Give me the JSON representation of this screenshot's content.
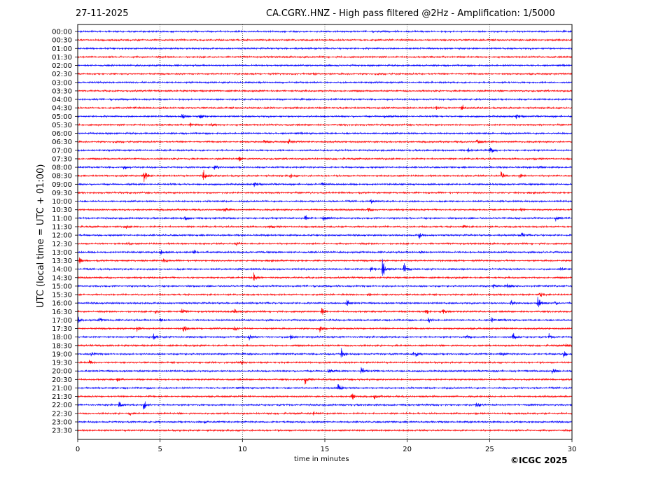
{
  "header": {
    "date": "27-11-2025",
    "title": "CA.CGRY..HNZ - High pass filtered @2Hz - Amplification: 1/5000"
  },
  "footer": {
    "copyright": "©ICGC 2025"
  },
  "chart_data": {
    "type": "line",
    "title": "CA.CGRY..HNZ - High pass filtered @2Hz - Amplification: 1/5000",
    "xlabel": "time in minutes",
    "ylabel": "UTC (local time = UTC + 01:00)",
    "xlim": [
      0,
      30
    ],
    "x_ticks": [
      0,
      5,
      10,
      15,
      20,
      25,
      30
    ],
    "vertical_gridlines": [
      5,
      10,
      15,
      20,
      25
    ],
    "grid": "dotted vertical lines at 5-minute intervals",
    "trace_colors": [
      "#0000ff",
      "#ff0000"
    ],
    "traces": [
      "00:00",
      "00:30",
      "01:00",
      "01:30",
      "02:00",
      "02:30",
      "03:00",
      "03:30",
      "04:00",
      "04:30",
      "05:00",
      "05:30",
      "06:00",
      "06:30",
      "07:00",
      "07:30",
      "08:00",
      "08:30",
      "09:00",
      "09:30",
      "10:00",
      "10:30",
      "11:00",
      "11:30",
      "12:00",
      "12:30",
      "13:00",
      "13:30",
      "14:00",
      "14:30",
      "15:00",
      "15:30",
      "16:00",
      "16:30",
      "17:00",
      "17:30",
      "18:00",
      "18:30",
      "19:00",
      "19:30",
      "20:00",
      "20:30",
      "21:00",
      "21:30",
      "22:00",
      "22:30",
      "23:00",
      "23:30"
    ],
    "events": [
      {
        "trace": "02:30",
        "minute": 14.3,
        "amplitude": 0.5
      },
      {
        "trace": "04:30",
        "minute": 3.3,
        "amplitude": 0.3
      },
      {
        "trace": "04:30",
        "minute": 5.0,
        "amplitude": 0.25
      },
      {
        "trace": "04:30",
        "minute": 21.7,
        "amplitude": 0.2
      },
      {
        "trace": "04:30",
        "minute": 23.3,
        "amplitude": 0.5
      },
      {
        "trace": "05:00",
        "minute": 6.3,
        "amplitude": 0.5
      },
      {
        "trace": "05:00",
        "minute": 7.4,
        "amplitude": 0.5
      },
      {
        "trace": "05:00",
        "minute": 18.6,
        "amplitude": 0.3
      },
      {
        "trace": "05:00",
        "minute": 26.6,
        "amplitude": 0.4
      },
      {
        "trace": "05:30",
        "minute": 6.8,
        "amplitude": 0.4
      },
      {
        "trace": "05:30",
        "minute": 8.1,
        "amplitude": 0.35
      },
      {
        "trace": "06:30",
        "minute": 11.3,
        "amplitude": 0.3
      },
      {
        "trace": "06:30",
        "minute": 12.8,
        "amplitude": 0.4
      },
      {
        "trace": "06:30",
        "minute": 24.2,
        "amplitude": 0.4
      },
      {
        "trace": "07:00",
        "minute": 23.7,
        "amplitude": 0.3
      },
      {
        "trace": "07:00",
        "minute": 25.0,
        "amplitude": 0.7
      },
      {
        "trace": "07:30",
        "minute": 9.8,
        "amplitude": 0.35
      },
      {
        "trace": "08:00",
        "minute": 2.8,
        "amplitude": 0.3
      },
      {
        "trace": "08:00",
        "minute": 8.3,
        "amplitude": 0.4
      },
      {
        "trace": "08:00",
        "minute": 28.0,
        "amplitude": 0.3
      },
      {
        "trace": "08:30",
        "minute": 4.0,
        "amplitude": 1.2
      },
      {
        "trace": "08:30",
        "minute": 7.6,
        "amplitude": 1.2
      },
      {
        "trace": "08:30",
        "minute": 12.9,
        "amplitude": 0.3
      },
      {
        "trace": "08:30",
        "minute": 25.7,
        "amplitude": 0.7
      },
      {
        "trace": "08:30",
        "minute": 26.8,
        "amplitude": 0.4
      },
      {
        "trace": "09:00",
        "minute": 10.7,
        "amplitude": 0.4
      },
      {
        "trace": "09:00",
        "minute": 14.8,
        "amplitude": 0.2
      },
      {
        "trace": "10:00",
        "minute": 17.8,
        "amplitude": 0.35
      },
      {
        "trace": "10:30",
        "minute": 8.9,
        "amplitude": 0.5
      },
      {
        "trace": "10:30",
        "minute": 17.6,
        "amplitude": 0.35
      },
      {
        "trace": "10:30",
        "minute": 26.9,
        "amplitude": 0.3
      },
      {
        "trace": "11:00",
        "minute": 6.5,
        "amplitude": 0.4
      },
      {
        "trace": "11:00",
        "minute": 13.8,
        "amplitude": 0.6
      },
      {
        "trace": "11:00",
        "minute": 14.9,
        "amplitude": 0.4
      },
      {
        "trace": "11:00",
        "minute": 29.0,
        "amplitude": 0.5
      },
      {
        "trace": "11:30",
        "minute": 2.9,
        "amplitude": 0.3
      },
      {
        "trace": "11:30",
        "minute": 11.6,
        "amplitude": 0.3
      },
      {
        "trace": "11:30",
        "minute": 23.4,
        "amplitude": 0.3
      },
      {
        "trace": "12:00",
        "minute": 20.7,
        "amplitude": 0.55
      },
      {
        "trace": "12:00",
        "minute": 26.9,
        "amplitude": 0.55
      },
      {
        "trace": "12:30",
        "minute": 3.0,
        "amplitude": 0.3
      },
      {
        "trace": "12:30",
        "minute": 9.6,
        "amplitude": 0.35
      },
      {
        "trace": "13:00",
        "minute": 5.0,
        "amplitude": 0.5
      },
      {
        "trace": "13:00",
        "minute": 7.0,
        "amplitude": 0.5
      },
      {
        "trace": "13:00",
        "minute": 20.8,
        "amplitude": 0.3
      },
      {
        "trace": "13:30",
        "minute": 0.1,
        "amplitude": 0.5
      },
      {
        "trace": "13:30",
        "minute": 5.2,
        "amplitude": 0.35
      },
      {
        "trace": "14:00",
        "minute": 17.8,
        "amplitude": 0.4
      },
      {
        "trace": "14:00",
        "minute": 18.5,
        "amplitude": 1.5
      },
      {
        "trace": "14:00",
        "minute": 19.8,
        "amplitude": 0.9
      },
      {
        "trace": "14:00",
        "minute": 29.3,
        "amplitude": 0.35
      },
      {
        "trace": "14:30",
        "minute": 10.7,
        "amplitude": 0.8
      },
      {
        "trace": "15:00",
        "minute": 25.2,
        "amplitude": 0.5
      },
      {
        "trace": "15:00",
        "minute": 26.1,
        "amplitude": 0.4
      },
      {
        "trace": "15:30",
        "minute": 17.6,
        "amplitude": 0.35
      },
      {
        "trace": "15:30",
        "minute": 28.0,
        "amplitude": 0.5
      },
      {
        "trace": "16:00",
        "minute": 16.3,
        "amplitude": 0.6
      },
      {
        "trace": "16:00",
        "minute": 26.3,
        "amplitude": 0.5
      },
      {
        "trace": "16:00",
        "minute": 27.9,
        "amplitude": 1.2
      },
      {
        "trace": "16:00",
        "minute": 28.9,
        "amplitude": 0.4
      },
      {
        "trace": "16:30",
        "minute": 4.7,
        "amplitude": 0.3
      },
      {
        "trace": "16:30",
        "minute": 6.3,
        "amplitude": 0.4
      },
      {
        "trace": "16:30",
        "minute": 9.5,
        "amplitude": 0.35
      },
      {
        "trace": "16:30",
        "minute": 14.8,
        "amplitude": 0.5
      },
      {
        "trace": "16:30",
        "minute": 21.1,
        "amplitude": 0.6
      },
      {
        "trace": "16:30",
        "minute": 22.1,
        "amplitude": 0.6
      },
      {
        "trace": "17:00",
        "minute": 0.0,
        "amplitude": 0.5
      },
      {
        "trace": "17:00",
        "minute": 1.3,
        "amplitude": 0.4
      },
      {
        "trace": "17:00",
        "minute": 5.0,
        "amplitude": 0.4
      },
      {
        "trace": "17:00",
        "minute": 21.3,
        "amplitude": 0.4
      },
      {
        "trace": "17:00",
        "minute": 25.1,
        "amplitude": 0.4
      },
      {
        "trace": "17:30",
        "minute": 3.6,
        "amplitude": 0.5
      },
      {
        "trace": "17:30",
        "minute": 6.4,
        "amplitude": 0.8
      },
      {
        "trace": "17:30",
        "minute": 9.5,
        "amplitude": 0.4
      },
      {
        "trace": "17:30",
        "minute": 14.7,
        "amplitude": 0.4
      },
      {
        "trace": "18:00",
        "minute": 4.6,
        "amplitude": 0.5
      },
      {
        "trace": "18:00",
        "minute": 10.4,
        "amplitude": 0.4
      },
      {
        "trace": "18:00",
        "minute": 12.9,
        "amplitude": 0.4
      },
      {
        "trace": "18:00",
        "minute": 23.6,
        "amplitude": 0.5
      },
      {
        "trace": "18:00",
        "minute": 26.4,
        "amplitude": 0.7
      },
      {
        "trace": "18:00",
        "minute": 28.6,
        "amplitude": 0.4
      },
      {
        "trace": "18:30",
        "minute": 29.6,
        "amplitude": 0.3
      },
      {
        "trace": "19:00",
        "minute": 0.8,
        "amplitude": 0.4
      },
      {
        "trace": "19:00",
        "minute": 16.0,
        "amplitude": 0.9
      },
      {
        "trace": "19:00",
        "minute": 20.4,
        "amplitude": 0.9
      },
      {
        "trace": "19:00",
        "minute": 25.7,
        "amplitude": 0.5
      },
      {
        "trace": "19:00",
        "minute": 29.5,
        "amplitude": 0.5
      },
      {
        "trace": "19:30",
        "minute": 0.7,
        "amplitude": 0.35
      },
      {
        "trace": "19:30",
        "minute": 9.9,
        "amplitude": 0.4
      },
      {
        "trace": "20:00",
        "minute": 15.2,
        "amplitude": 0.5
      },
      {
        "trace": "20:00",
        "minute": 17.2,
        "amplitude": 0.8
      },
      {
        "trace": "20:00",
        "minute": 28.8,
        "amplitude": 0.4
      },
      {
        "trace": "20:30",
        "minute": 2.4,
        "amplitude": 0.35
      },
      {
        "trace": "20:30",
        "minute": 13.8,
        "amplitude": 0.8
      },
      {
        "trace": "21:00",
        "minute": 15.8,
        "amplitude": 0.8
      },
      {
        "trace": "21:30",
        "minute": 16.6,
        "amplitude": 0.7
      },
      {
        "trace": "21:30",
        "minute": 18.0,
        "amplitude": 0.35
      },
      {
        "trace": "22:00",
        "minute": 2.5,
        "amplitude": 0.5
      },
      {
        "trace": "22:00",
        "minute": 4.0,
        "amplitude": 0.8
      },
      {
        "trace": "22:00",
        "minute": 24.2,
        "amplitude": 0.4
      },
      {
        "trace": "22:30",
        "minute": 3.1,
        "amplitude": 0.3
      },
      {
        "trace": "22:30",
        "minute": 14.3,
        "amplitude": 0.35
      },
      {
        "trace": "23:00",
        "minute": 7.7,
        "amplitude": 0.2
      }
    ]
  }
}
